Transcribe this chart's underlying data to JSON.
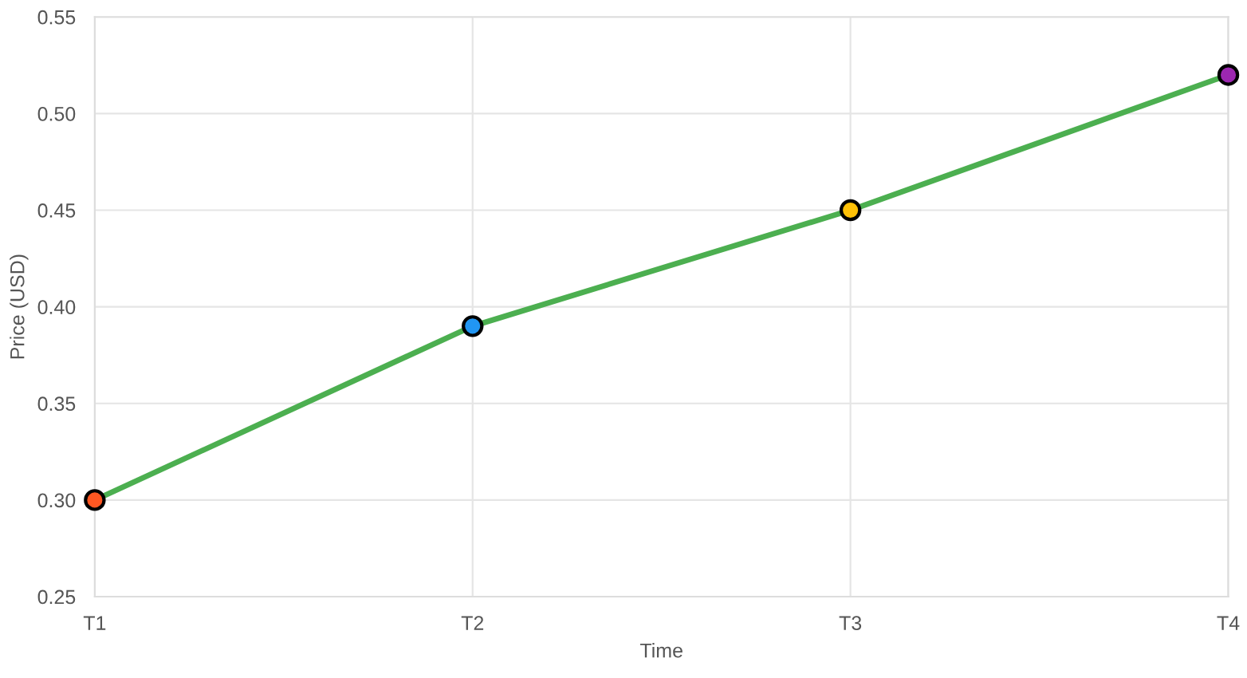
{
  "chart_data": {
    "type": "line",
    "xlabel": "Time",
    "ylabel": "Price (USD)",
    "categories": [
      "T1",
      "T2",
      "T3",
      "T4"
    ],
    "series": [
      {
        "color": "#4caf50",
        "colors": [
          "#ff5722",
          "#2196f3",
          "#ffc107",
          "#9c27b0"
        ],
        "values": [
          0.3,
          0.39,
          0.45,
          0.52
        ]
      }
    ],
    "ylim": [
      0.25,
      0.55
    ],
    "yticks": [
      {
        "value": 0.25,
        "label": "0.25"
      },
      {
        "value": 0.3,
        "label": "0.30"
      },
      {
        "value": 0.35,
        "label": "0.35"
      },
      {
        "value": 0.4,
        "label": "0.40"
      },
      {
        "value": 0.45,
        "label": "0.45"
      },
      {
        "value": 0.5,
        "label": "0.50"
      },
      {
        "value": 0.55,
        "label": "0.55"
      }
    ],
    "grid": true,
    "marker": "circle",
    "line_style": "solid"
  }
}
